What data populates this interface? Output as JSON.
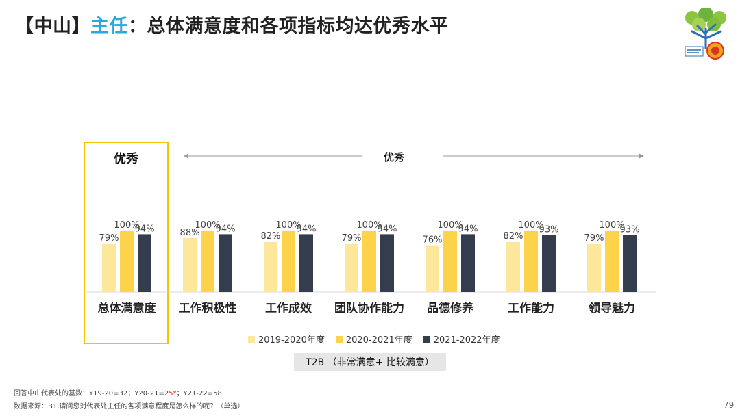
{
  "slide": {
    "title_prefix": "【中山】",
    "title_highlight": "主任",
    "title_rest": "：总体满意度和各项指标均达优秀水平",
    "highlight_label": "优秀",
    "group_label": "优秀",
    "t2b_label": "T2B （非常满意+ 比较满意）",
    "footnote_base_prefix": "回答中山代表处的基数：Y19-20=32；Y20-21=",
    "footnote_base_red": "25*",
    "footnote_base_suffix": "；Y21-22=58",
    "footnote_source": "数据来源：B1.请问您对代表处主任的各项满意程度是怎么样的呢？（单选）",
    "page_number": "79"
  },
  "colors": {
    "accent_blue": "#29a9e1",
    "highlight_yellow": "#f5c400",
    "series": [
      "#fde79b",
      "#fdd34a",
      "#333d4e"
    ]
  },
  "logo_icon": "tree-anniversary-logo-icon",
  "chart_data": {
    "type": "bar",
    "categories": [
      "总体满意度",
      "工作积极性",
      "工作成效",
      "团队协作能力",
      "品德修养",
      "工作能力",
      "领导魅力"
    ],
    "series": [
      {
        "name": "2019-2020年度",
        "values": [
          79,
          88,
          82,
          79,
          76,
          82,
          79
        ],
        "labels": [
          "79%",
          "88%",
          "82%",
          "79%",
          "76%",
          "82%",
          "79%"
        ]
      },
      {
        "name": "2020-2021年度",
        "values": [
          100,
          100,
          100,
          100,
          100,
          100,
          100
        ],
        "labels": [
          "100%",
          "100%",
          "100%",
          "100%",
          "100%",
          "100%",
          "100%"
        ]
      },
      {
        "name": "2021-2022年度",
        "values": [
          94,
          94,
          94,
          94,
          94,
          93,
          93
        ],
        "labels": [
          "94%",
          "94%",
          "94%",
          "94%",
          "94%",
          "93%",
          "93%"
        ]
      }
    ],
    "ylim": [
      0,
      100
    ],
    "grid": false,
    "legend_position": "bottom"
  }
}
